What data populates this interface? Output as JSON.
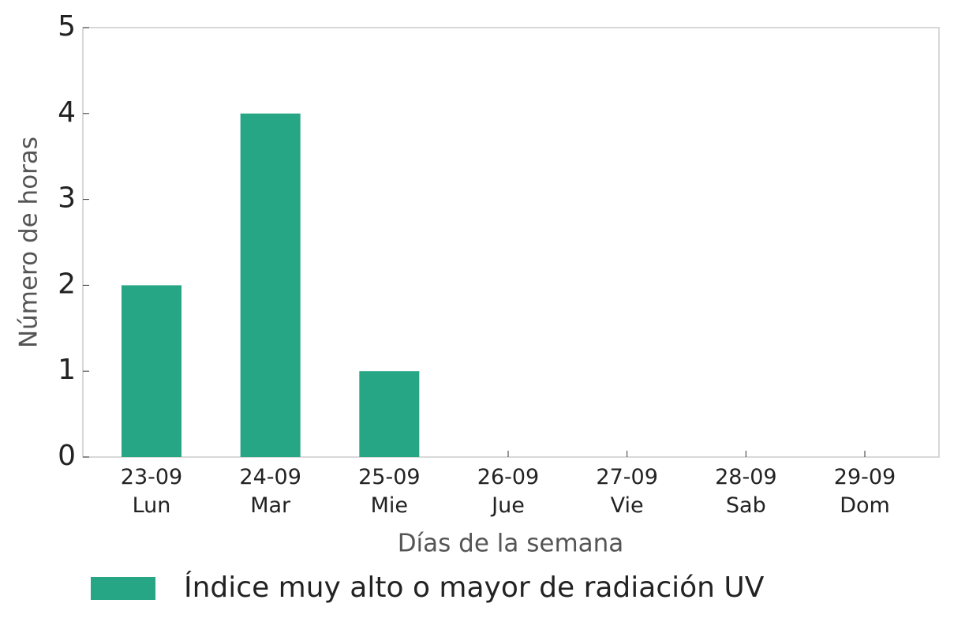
{
  "chart_data": {
    "type": "bar",
    "categories": [
      "23-09\nLun",
      "24-09\nMar",
      "25-09\nMie",
      "26-09\nJue",
      "27-09\nVie",
      "28-09\nSab",
      "29-09\nDom"
    ],
    "series": [
      {
        "name": "Índice muy alto o mayor de radiación UV",
        "color": "#26a684",
        "values": [
          2,
          4,
          1,
          0,
          0,
          0,
          0
        ]
      }
    ],
    "xlabel": "Días de la semana",
    "ylabel": "Número de horas",
    "ylim": [
      0,
      5
    ],
    "yticks": [
      0,
      1,
      2,
      3,
      4,
      5
    ],
    "grid": false,
    "legend": "bottom"
  }
}
